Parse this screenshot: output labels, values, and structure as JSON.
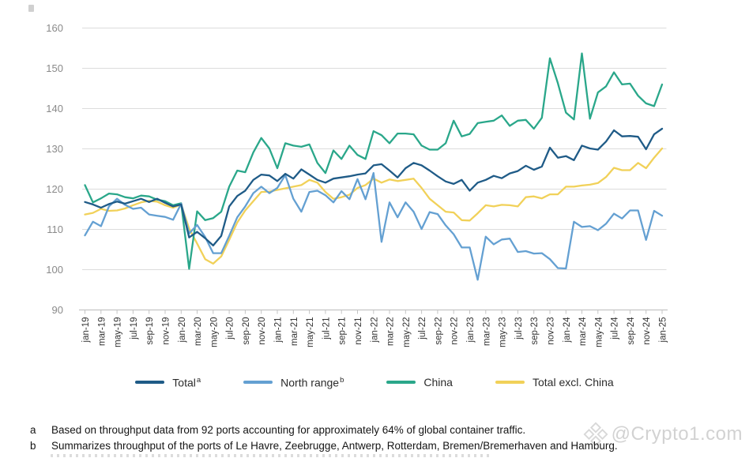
{
  "chart_data": {
    "type": "line",
    "title": "",
    "xlabel": "",
    "ylabel": "",
    "ylim": [
      90,
      160
    ],
    "ytick_step": 10,
    "grid": true,
    "legend_position": "bottom",
    "x_labels_every": 2,
    "months": [
      "jan-19",
      "feb-19",
      "mar-19",
      "apr-19",
      "may-19",
      "jun-19",
      "jul-19",
      "aug-19",
      "sep-19",
      "oct-19",
      "nov-19",
      "dec-19",
      "jan-20",
      "feb-20",
      "mar-20",
      "apr-20",
      "may-20",
      "jun-20",
      "jul-20",
      "aug-20",
      "sep-20",
      "oct-20",
      "nov-20",
      "dec-20",
      "jan-21",
      "feb-21",
      "mar-21",
      "apr-21",
      "may-21",
      "jun-21",
      "jul-21",
      "aug-21",
      "sep-21",
      "oct-21",
      "nov-21",
      "dec-21",
      "jan-22",
      "feb-22",
      "mar-22",
      "apr-22",
      "may-22",
      "jun-22",
      "jul-22",
      "aug-22",
      "sep-22",
      "oct-22",
      "nov-22",
      "dec-22",
      "jan-23",
      "feb-23",
      "mar-23",
      "apr-23",
      "may-23",
      "jun-23",
      "jul-23",
      "aug-23",
      "sep-23",
      "oct-23",
      "nov-23",
      "dec-23",
      "jan-24",
      "feb-24",
      "mar-24",
      "apr-24",
      "may-24",
      "jun-24",
      "jul-24",
      "aug-24",
      "sep-24",
      "oct-24",
      "nov-24",
      "dec-24",
      "jan-25"
    ],
    "series": [
      {
        "name": "Total",
        "sup": "a",
        "color": "#1f5b87",
        "values": [
          116.8,
          116.2,
          115.4,
          116.3,
          116.9,
          116.4,
          117.0,
          117.6,
          116.8,
          117.6,
          116.6,
          115.7,
          116.2,
          108.0,
          109.4,
          107.8,
          106.0,
          108.4,
          115.7,
          118.3,
          119.6,
          122.3,
          123.6,
          123.4,
          122.0,
          123.8,
          122.6,
          124.9,
          123.6,
          122.3,
          121.6,
          122.6,
          122.9,
          123.2,
          123.6,
          123.9,
          125.9,
          126.2,
          124.6,
          122.9,
          125.2,
          126.5,
          125.9,
          124.6,
          123.2,
          121.9,
          121.3,
          122.3,
          119.6,
          121.6,
          122.3,
          123.3,
          122.7,
          123.9,
          124.5,
          125.8,
          124.8,
          125.6,
          130.3,
          127.8,
          128.2,
          127.2,
          130.8,
          130.1,
          129.8,
          131.8,
          134.6,
          133.1,
          133.2,
          133.0,
          129.9,
          133.6,
          135.0
        ]
      },
      {
        "name": "North range",
        "sup": "b",
        "color": "#64a0d2",
        "values": [
          108.5,
          111.9,
          110.8,
          115.7,
          117.6,
          116.1,
          115.1,
          115.4,
          113.7,
          113.4,
          113.1,
          112.4,
          116.4,
          109.0,
          111.1,
          108.1,
          104.1,
          104.1,
          108.4,
          113.0,
          115.7,
          119.0,
          120.6,
          119.0,
          120.3,
          123.5,
          117.6,
          114.4,
          119.3,
          119.6,
          118.5,
          116.7,
          119.5,
          117.5,
          122.5,
          117.5,
          124.0,
          106.9,
          116.7,
          113.0,
          116.7,
          114.4,
          110.1,
          114.3,
          113.8,
          111.0,
          108.8,
          105.5,
          105.5,
          97.5,
          108.2,
          106.3,
          107.5,
          107.7,
          104.4,
          104.6,
          104.0,
          104.1,
          102.6,
          100.4,
          100.3,
          111.9,
          110.6,
          110.8,
          109.8,
          111.4,
          113.9,
          112.7,
          114.7,
          114.7,
          107.4,
          114.6,
          113.4
        ]
      },
      {
        "name": "China",
        "sup": "",
        "color": "#2aa78a",
        "values": [
          121.0,
          116.7,
          117.7,
          118.9,
          118.7,
          118.0,
          117.7,
          118.4,
          118.2,
          117.4,
          117.0,
          116.0,
          116.5,
          100.2,
          114.5,
          112.3,
          112.8,
          114.4,
          120.6,
          124.6,
          124.2,
          129.1,
          132.7,
          130.1,
          125.2,
          131.4,
          130.8,
          130.5,
          131.1,
          126.5,
          124.0,
          129.6,
          127.5,
          130.8,
          128.5,
          127.5,
          134.4,
          133.4,
          131.4,
          133.8,
          133.8,
          133.6,
          130.8,
          129.8,
          129.8,
          131.4,
          137.0,
          133.1,
          133.7,
          136.4,
          136.7,
          137.0,
          138.3,
          135.7,
          137.0,
          137.2,
          135.0,
          137.7,
          152.5,
          146.3,
          139.0,
          137.3,
          153.7,
          137.5,
          144.0,
          145.5,
          149.0,
          146.0,
          146.2,
          143.2,
          141.3,
          140.6,
          146.0
        ]
      },
      {
        "name": "Total excl. China",
        "sup": "",
        "color": "#f1d159",
        "values": [
          113.7,
          114.1,
          115.1,
          114.6,
          114.7,
          115.2,
          116.0,
          116.7,
          117.1,
          116.9,
          116.0,
          115.4,
          116.2,
          110.2,
          106.5,
          102.6,
          101.5,
          103.3,
          107.4,
          111.7,
          114.7,
          117.0,
          119.3,
          119.4,
          119.8,
          120.2,
          120.6,
          121.0,
          122.3,
          121.6,
          119.3,
          117.6,
          118.0,
          118.6,
          120.3,
          121.0,
          122.6,
          121.6,
          122.4,
          122.0,
          122.3,
          122.6,
          120.3,
          117.6,
          116.0,
          114.4,
          114.2,
          112.3,
          112.2,
          114.0,
          116.0,
          115.7,
          116.1,
          116.0,
          115.7,
          118.0,
          118.2,
          117.7,
          118.7,
          118.7,
          120.6,
          120.6,
          120.9,
          121.1,
          121.5,
          123.0,
          125.3,
          124.7,
          124.7,
          126.5,
          125.2,
          127.8,
          130.1
        ]
      }
    ]
  },
  "footnotes": [
    {
      "marker": "a",
      "text": "Based on throughput data from 92 ports accounting for approximately 64% of global container traffic."
    },
    {
      "marker": "b",
      "text": "Summarizes throughput of the ports of Le Havre, Zeebrugge, Antwerp, Rotterdam, Bremen/Bremerhaven and Hamburg."
    }
  ],
  "watermark": {
    "icon": "ornament-diamond-icon",
    "text": "@Crypto1.com"
  },
  "colors": {
    "grid": "#dcdcdc",
    "axis": "#c4c4c4",
    "tick": "#c4c4c4",
    "y_label": "#8a8a8a",
    "x_label": "#333333",
    "watermark": "#d2d2d2"
  }
}
